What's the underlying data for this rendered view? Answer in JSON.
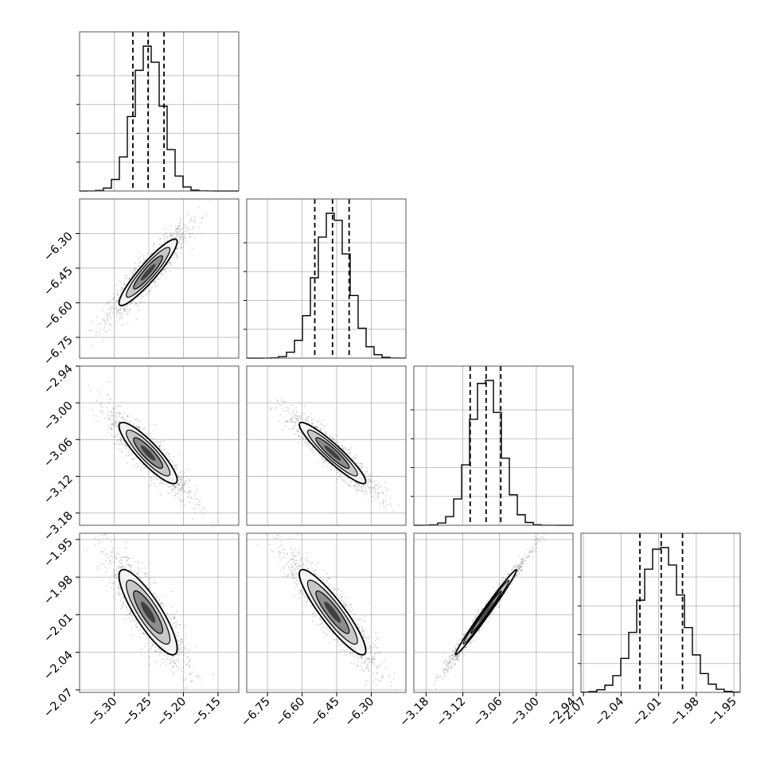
{
  "chart_data": {
    "type": "scatter",
    "subtype": "corner-plot",
    "parameters": [
      {
        "index": 0,
        "range": [
          -5.35,
          -5.12
        ],
        "ticks": [
          "−5.30",
          "−5.25",
          "−5.20",
          "−5.15"
        ],
        "tick_values": [
          -5.3,
          -5.25,
          -5.2,
          -5.15
        ],
        "quantiles": [
          -5.273,
          -5.251,
          -5.228
        ],
        "median": -5.251,
        "sigma": 0.021
      },
      {
        "index": 1,
        "range": [
          -6.84,
          -6.15
        ],
        "ticks": [
          "−6.75",
          "−6.60",
          "−6.45",
          "−6.30"
        ],
        "tick_values": [
          -6.75,
          -6.6,
          -6.45,
          -6.3
        ],
        "quantiles": [
          -6.545,
          -6.468,
          -6.396
        ],
        "median": -6.468,
        "sigma": 0.072
      },
      {
        "index": 2,
        "range": [
          -3.2,
          -2.94
        ],
        "ticks": [
          "−3.18",
          "−3.12",
          "−3.06",
          "−3.00",
          "−2.94"
        ],
        "tick_values": [
          -3.18,
          -3.12,
          -3.06,
          -3.0,
          -2.94
        ],
        "quantiles": [
          -3.108,
          -3.082,
          -3.058
        ],
        "median": -3.082,
        "sigma": 0.025
      },
      {
        "index": 3,
        "range": [
          -2.072,
          -1.945
        ],
        "ticks": [
          "−2.07",
          "−2.04",
          "−2.01",
          "−1.98",
          "−1.95"
        ],
        "tick_values": [
          -2.07,
          -2.04,
          -2.01,
          -1.98,
          -1.95
        ],
        "quantiles": [
          -2.025,
          -2.008,
          -1.991
        ],
        "median": -2.008,
        "sigma": 0.017
      }
    ],
    "correlations": [
      {
        "pair": [
          0,
          1
        ],
        "rho": 0.92
      },
      {
        "pair": [
          0,
          2
        ],
        "rho": -0.88
      },
      {
        "pair": [
          1,
          2
        ],
        "rho": -0.93
      },
      {
        "pair": [
          0,
          3
        ],
        "rho": -0.85
      },
      {
        "pair": [
          1,
          3
        ],
        "rho": -0.9
      },
      {
        "pair": [
          2,
          3
        ],
        "rho": 0.99
      }
    ],
    "histogram_bins": 20,
    "grid": true,
    "colors": {
      "lines": "#000000",
      "points": "#808080",
      "grid": "#b0b0b0"
    }
  }
}
